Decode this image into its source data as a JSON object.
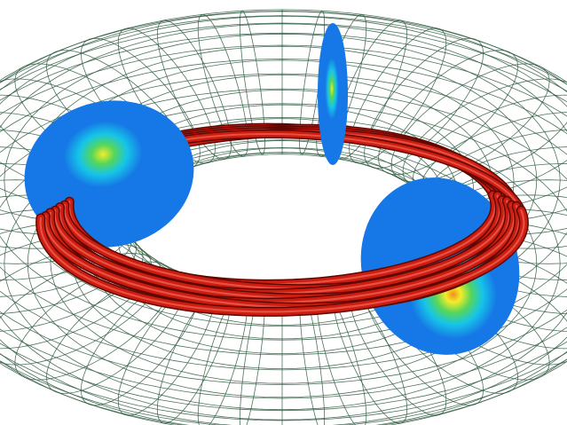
{
  "scene": {
    "subject": "torus",
    "colors": {
      "background": "#ffffff",
      "mesh": "#2e5a40",
      "tube": "#cc1d10",
      "tube_highlight": "#f2685a",
      "tube_shadow": "#5e0702",
      "disc_base": "#1677e6",
      "disc_cyan": "#16c5e8",
      "disc_green": "#55d65a",
      "disc_yellow": "#f3ec2a",
      "disc_orange": "#f08f1e"
    },
    "mesh": {
      "toroidal_lines": 56,
      "poloidal_lines": 30
    },
    "cross_sections": 3,
    "field_tubes": 7
  }
}
